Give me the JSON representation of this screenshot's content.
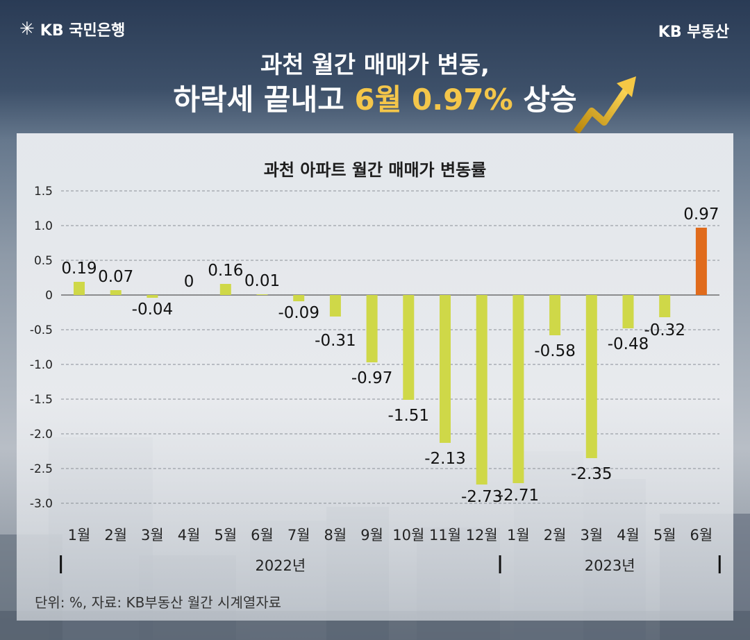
{
  "header": {
    "logo_text": "KB 국민은행",
    "brand_text": "KB 부동산",
    "title_line1": "과천 월간 매매가 변동,",
    "title_line2_prefix": "하락세 끝내고 ",
    "title_line2_highlight": "6월 0.97%",
    "title_line2_suffix": " 상승"
  },
  "colors": {
    "bar_default": "#cfd848",
    "bar_highlight": "#e06b1c",
    "title_highlight": "#f4c64a"
  },
  "chart_data": {
    "type": "bar",
    "title": "과천 아파트 월간 매매가 변동률",
    "categories": [
      "1월",
      "2월",
      "3월",
      "4월",
      "5월",
      "6월",
      "7월",
      "8월",
      "9월",
      "10월",
      "11월",
      "12월",
      "1월",
      "2월",
      "3월",
      "4월",
      "5월",
      "6월"
    ],
    "values": [
      0.19,
      0.07,
      -0.04,
      0,
      0.16,
      0.01,
      -0.09,
      -0.31,
      -0.97,
      -1.51,
      -2.13,
      -2.73,
      -2.71,
      -0.58,
      -2.35,
      -0.48,
      -0.32,
      0.97
    ],
    "value_labels": [
      "0.19",
      "0.07",
      "-0.04",
      "0",
      "0.16",
      "0.01",
      "-0.09",
      "-0.31",
      "-0.97",
      "-1.51",
      "-2.13",
      "-2.73",
      "-2.71",
      "-0.58",
      "-2.35",
      "-0.48",
      "-0.32",
      "0.97"
    ],
    "highlight_index": 17,
    "year_groups": [
      {
        "label": "2022년",
        "count": 12
      },
      {
        "label": "2023년",
        "count": 6
      }
    ],
    "yticks": [
      "1.5",
      "1.0",
      "0.5",
      "0",
      "-0.5",
      "-1.0",
      "-1.5",
      "-2.0",
      "-2.5",
      "-3.0"
    ],
    "ytick_values": [
      1.5,
      1.0,
      0.5,
      0,
      -0.5,
      -1.0,
      -1.5,
      -2.0,
      -2.5,
      -3.0
    ],
    "ylim": [
      -3.0,
      1.5
    ],
    "grid": true
  },
  "footer": {
    "note": "단위: %, 자료: KB부동산 월간 시계열자료"
  }
}
